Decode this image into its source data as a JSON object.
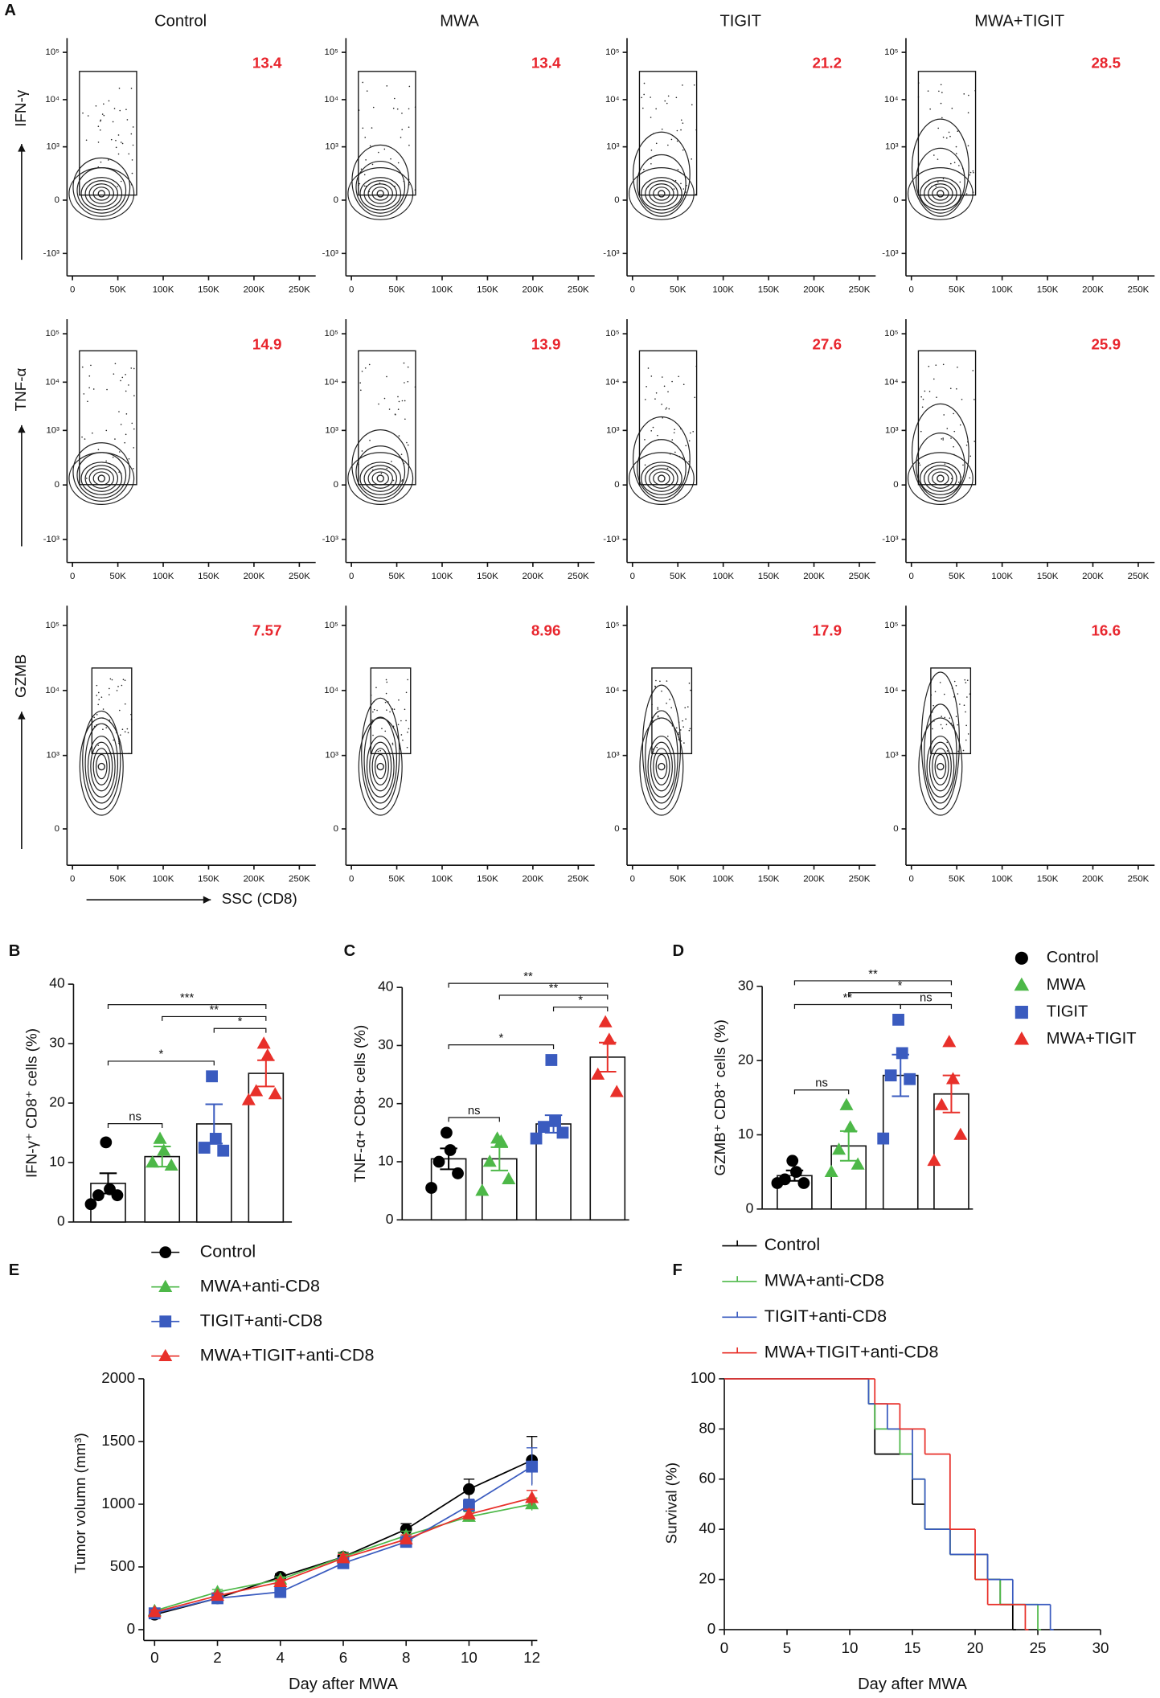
{
  "chart_data": [
    {
      "type": "flow",
      "panel_label": "A",
      "columns": [
        "Control",
        "MWA",
        "TIGIT",
        "MWA+TIGIT"
      ],
      "x_label": "SSC (CD8)",
      "xlim": [
        -6000,
        268000
      ],
      "xticks": [
        0,
        {
          "value": 50000,
          "label": "50K"
        },
        {
          "value": 100000,
          "label": "100K"
        },
        {
          "value": 150000,
          "label": "150K"
        },
        {
          "value": 200000,
          "label": "200K"
        },
        {
          "value": 250000,
          "label": "250K"
        }
      ],
      "yscale": "biexponential",
      "value_color": "#e8252d",
      "rows": [
        {
          "label": "IFN-γ",
          "values": [
            13.4,
            13.4,
            21.2,
            28.5
          ],
          "ylim": [
            -3000,
            200000
          ],
          "yticks": [
            {
              "value": -1000,
              "label": "-10³"
            },
            0,
            {
              "value": 1000,
              "label": "10³"
            },
            {
              "value": 10000,
              "label": "10⁴"
            },
            {
              "value": 100000,
              "label": "10⁵"
            }
          ]
        },
        {
          "label": "TNF-α",
          "values": [
            14.9,
            13.9,
            27.6,
            25.9
          ],
          "ylim": [
            -3000,
            200000
          ],
          "yticks": [
            {
              "value": -1000,
              "label": "-10³"
            },
            0,
            {
              "value": 1000,
              "label": "10³"
            },
            {
              "value": 10000,
              "label": "10⁴"
            },
            {
              "value": 100000,
              "label": "10⁵"
            }
          ]
        },
        {
          "label": "GZMB",
          "values": [
            7.57,
            8.96,
            17.9,
            16.6
          ],
          "ylim": [
            -250,
            200000
          ],
          "yticks": [
            0,
            {
              "value": 1000,
              "label": "10³"
            },
            {
              "value": 10000,
              "label": "10⁴"
            },
            {
              "value": 100000,
              "label": "10⁵"
            }
          ]
        }
      ]
    },
    {
      "type": "dotbar",
      "groups": [
        {
          "name": "Control",
          "color": "#000000",
          "marker": "circle"
        },
        {
          "name": "MWA",
          "color": "#4db848",
          "marker": "triangle"
        },
        {
          "name": "TIGIT",
          "color": "#3a5bbf",
          "marker": "square"
        },
        {
          "name": "MWA+TIGIT",
          "color": "#e8302a",
          "marker": "triangle"
        }
      ],
      "panels": [
        {
          "panel_label": "B",
          "y_label": "IFN-γ⁺ CD8⁺ cells (%)",
          "ylim": [
            0,
            40
          ],
          "yticks": [
            0,
            10,
            20,
            30,
            40
          ],
          "means": [
            6.5,
            11,
            16.5,
            25
          ],
          "errors": [
            1.7,
            1.7,
            3.3,
            2.2
          ],
          "points": [
            [
              13.4,
              5.5,
              4.5,
              4.5,
              3
            ],
            [
              14,
              12,
              10,
              9.5
            ],
            [
              24.5,
              14,
              12.5,
              12
            ],
            [
              30,
              28,
              22,
              21.5,
              20.5
            ]
          ],
          "comparisons": [
            {
              "groups": [
                0,
                1
              ],
              "label": "ns"
            },
            {
              "groups": [
                0,
                2
              ],
              "label": "*"
            },
            {
              "groups": [
                2,
                3
              ],
              "label": "*"
            },
            {
              "groups": [
                1,
                3
              ],
              "label": "**"
            },
            {
              "groups": [
                0,
                3
              ],
              "label": "***"
            }
          ]
        },
        {
          "panel_label": "C",
          "y_label": "TNF-α+ CD8+ cells (%)",
          "ylim": [
            0,
            40
          ],
          "yticks": [
            0,
            10,
            20,
            30,
            40
          ],
          "means": [
            10.5,
            10.5,
            16.5,
            28
          ],
          "errors": [
            1.8,
            2,
            1.5,
            2.5
          ],
          "points": [
            [
              15,
              12,
              10,
              8,
              5.5
            ],
            [
              14,
              13.5,
              10,
              7,
              5
            ],
            [
              27.5,
              17,
              16,
              15,
              14
            ],
            [
              34,
              31,
              25,
              22
            ]
          ],
          "comparisons": [
            {
              "groups": [
                0,
                1
              ],
              "label": "ns"
            },
            {
              "groups": [
                0,
                2
              ],
              "label": "*"
            },
            {
              "groups": [
                2,
                3
              ],
              "label": "*"
            },
            {
              "groups": [
                1,
                3
              ],
              "label": "**"
            },
            {
              "groups": [
                0,
                3
              ],
              "label": "**"
            }
          ]
        },
        {
          "panel_label": "D",
          "y_label": "GZMB⁺ CD8⁺ cells (%)",
          "ylim": [
            0,
            30
          ],
          "yticks": [
            0,
            10,
            20,
            30
          ],
          "means": [
            4.5,
            8.5,
            18,
            15.5
          ],
          "errors": [
            0.7,
            2,
            2.8,
            2.5
          ],
          "points": [
            [
              6.5,
              5,
              4,
              3.5,
              3.5
            ],
            [
              14,
              11,
              8,
              6,
              5
            ],
            [
              25.5,
              21,
              18,
              17.5,
              9.5
            ],
            [
              22.5,
              17.5,
              14,
              10,
              6.5
            ]
          ],
          "comparisons": [
            {
              "groups": [
                0,
                1
              ],
              "label": "ns"
            },
            {
              "groups": [
                0,
                2
              ],
              "label": "**"
            },
            {
              "groups": [
                2,
                3
              ],
              "label": "ns"
            },
            {
              "groups": [
                1,
                3
              ],
              "label": "*"
            },
            {
              "groups": [
                0,
                3
              ],
              "label": "**"
            }
          ]
        }
      ]
    },
    {
      "type": "line",
      "panel_label": "E",
      "x_label": "Day after MWA",
      "y_label": "Tumor volumn (mm³)",
      "x": [
        0,
        2,
        4,
        6,
        8,
        10,
        12
      ],
      "xlim": [
        0,
        12
      ],
      "xticks": [
        0,
        2,
        4,
        6,
        8,
        10,
        12
      ],
      "ylim": [
        0,
        2000
      ],
      "yticks": [
        0,
        500,
        1000,
        1500,
        2000
      ],
      "series": [
        {
          "name": "Control",
          "color": "#000000",
          "marker": "circle",
          "values": [
            120,
            250,
            420,
            580,
            800,
            1120,
            1350
          ],
          "errors": [
            15,
            20,
            25,
            35,
            45,
            80,
            190
          ]
        },
        {
          "name": "MWA+anti-CD8",
          "color": "#4db848",
          "marker": "triangle",
          "values": [
            150,
            300,
            400,
            580,
            750,
            900,
            1000
          ],
          "errors": [
            15,
            20,
            20,
            30,
            35,
            40,
            50
          ]
        },
        {
          "name": "TIGIT+anti-CD8",
          "color": "#3a5bbf",
          "marker": "square",
          "values": [
            130,
            250,
            300,
            530,
            700,
            990,
            1300
          ],
          "errors": [
            15,
            20,
            20,
            30,
            40,
            50,
            150
          ]
        },
        {
          "name": "MWA+TIGIT+anti-CD8",
          "color": "#e8302a",
          "marker": "triangle",
          "values": [
            140,
            270,
            380,
            570,
            720,
            920,
            1050
          ],
          "errors": [
            15,
            20,
            20,
            30,
            35,
            40,
            60
          ]
        }
      ]
    },
    {
      "type": "step",
      "panel_label": "F",
      "x_label": "Day after MWA",
      "y_label": "Survival (%)",
      "xlim": [
        0,
        30
      ],
      "xticks": [
        0,
        5,
        10,
        15,
        20,
        25,
        30
      ],
      "ylim": [
        0,
        100
      ],
      "yticks": [
        0,
        20,
        40,
        60,
        80,
        100
      ],
      "series": [
        {
          "name": "Control",
          "color": "#000000",
          "x": [
            0,
            11.5,
            12,
            15,
            16,
            18,
            21,
            22,
            23
          ],
          "values": [
            100,
            90,
            70,
            50,
            40,
            30,
            20,
            10,
            0
          ]
        },
        {
          "name": "MWA+anti-CD8",
          "color": "#4db848",
          "x": [
            0,
            11.5,
            12,
            14,
            15,
            16,
            18,
            20,
            22,
            25
          ],
          "values": [
            100,
            90,
            80,
            70,
            60,
            40,
            30,
            20,
            10,
            0
          ]
        },
        {
          "name": "TIGIT+anti-CD8",
          "color": "#3a5bbf",
          "x": [
            0,
            11.5,
            13,
            15,
            16,
            18,
            21,
            23,
            26
          ],
          "values": [
            100,
            90,
            80,
            60,
            40,
            30,
            20,
            10,
            0
          ]
        },
        {
          "name": "MWA+TIGIT+anti-CD8",
          "color": "#e8302a",
          "x": [
            0,
            12,
            14,
            16,
            18,
            20,
            21,
            24
          ],
          "values": [
            100,
            90,
            80,
            70,
            40,
            20,
            10,
            0
          ]
        }
      ]
    }
  ]
}
